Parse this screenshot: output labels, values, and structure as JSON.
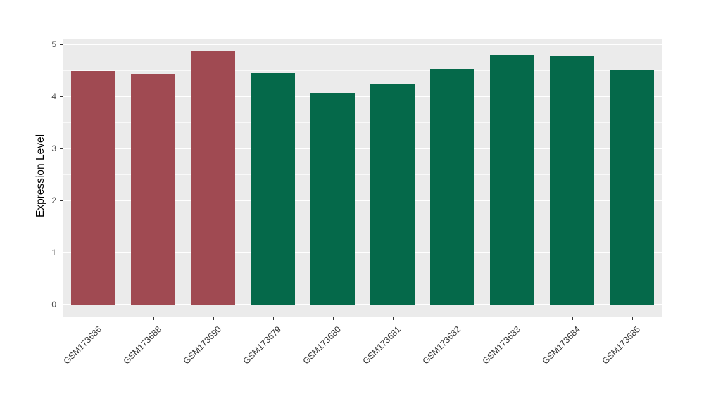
{
  "chart_data": {
    "type": "bar",
    "title": "",
    "xlabel": "",
    "ylabel": "Expression Level",
    "categories": [
      "GSM173686",
      "GSM173688",
      "GSM173690",
      "GSM173679",
      "GSM173680",
      "GSM173681",
      "GSM173682",
      "GSM173683",
      "GSM173684",
      "GSM173685"
    ],
    "values": [
      4.48,
      4.43,
      4.87,
      4.45,
      4.07,
      4.25,
      4.53,
      4.8,
      4.79,
      4.5
    ],
    "bar_colors": [
      "#A04A52",
      "#A04A52",
      "#A04A52",
      "#05694A",
      "#05694A",
      "#05694A",
      "#05694A",
      "#05694A",
      "#05694A",
      "#05694A"
    ],
    "group_colors": {
      "left_group": "#A04A52",
      "right_group": "#05694A"
    },
    "ylim": [
      0,
      5
    ],
    "yticks": [
      "0",
      "1",
      "2",
      "3",
      "4",
      "5"
    ],
    "grid": "major and minor horizontal white gridlines",
    "panel_background": "#EBEBEB",
    "gridline_color": "#FFFFFF",
    "legend": "none"
  }
}
